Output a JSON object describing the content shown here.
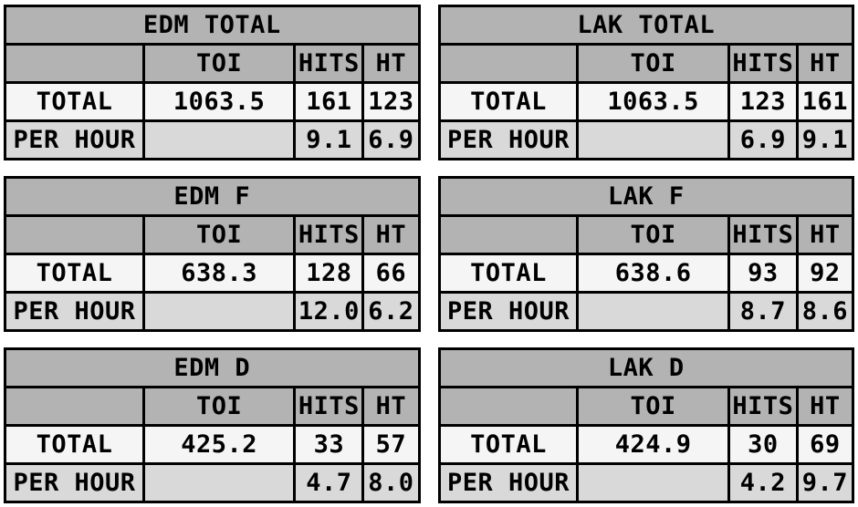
{
  "colors": {
    "header_bg": "#b3b3b3",
    "total_row_bg": "#f5f5f5",
    "per_hour_row_bg": "#d9d9d9",
    "border": "#000000",
    "text": "#000000",
    "page_bg": "#ffffff"
  },
  "chart_data": [
    {
      "type": "table",
      "title": "EDM TOTAL",
      "columns": [
        "",
        "TOI",
        "HITS",
        "HT"
      ],
      "rows": [
        [
          "TOTAL",
          "1063.5",
          "161",
          "123"
        ],
        [
          "PER HOUR",
          "",
          "9.1",
          "6.9"
        ]
      ]
    },
    {
      "type": "table",
      "title": "LAK TOTAL",
      "columns": [
        "",
        "TOI",
        "HITS",
        "HT"
      ],
      "rows": [
        [
          "TOTAL",
          "1063.5",
          "123",
          "161"
        ],
        [
          "PER HOUR",
          "",
          "6.9",
          "9.1"
        ]
      ]
    },
    {
      "type": "table",
      "title": "EDM F",
      "columns": [
        "",
        "TOI",
        "HITS",
        "HT"
      ],
      "rows": [
        [
          "TOTAL",
          "638.3",
          "128",
          "66"
        ],
        [
          "PER HOUR",
          "",
          "12.0",
          "6.2"
        ]
      ]
    },
    {
      "type": "table",
      "title": "LAK F",
      "columns": [
        "",
        "TOI",
        "HITS",
        "HT"
      ],
      "rows": [
        [
          "TOTAL",
          "638.6",
          "93",
          "92"
        ],
        [
          "PER HOUR",
          "",
          "8.7",
          "8.6"
        ]
      ]
    },
    {
      "type": "table",
      "title": "EDM D",
      "columns": [
        "",
        "TOI",
        "HITS",
        "HT"
      ],
      "rows": [
        [
          "TOTAL",
          "425.2",
          "33",
          "57"
        ],
        [
          "PER HOUR",
          "",
          "4.7",
          "8.0"
        ]
      ]
    },
    {
      "type": "table",
      "title": "LAK D",
      "columns": [
        "",
        "TOI",
        "HITS",
        "HT"
      ],
      "rows": [
        [
          "TOTAL",
          "424.9",
          "30",
          "69"
        ],
        [
          "PER HOUR",
          "",
          "4.2",
          "9.7"
        ]
      ]
    }
  ]
}
